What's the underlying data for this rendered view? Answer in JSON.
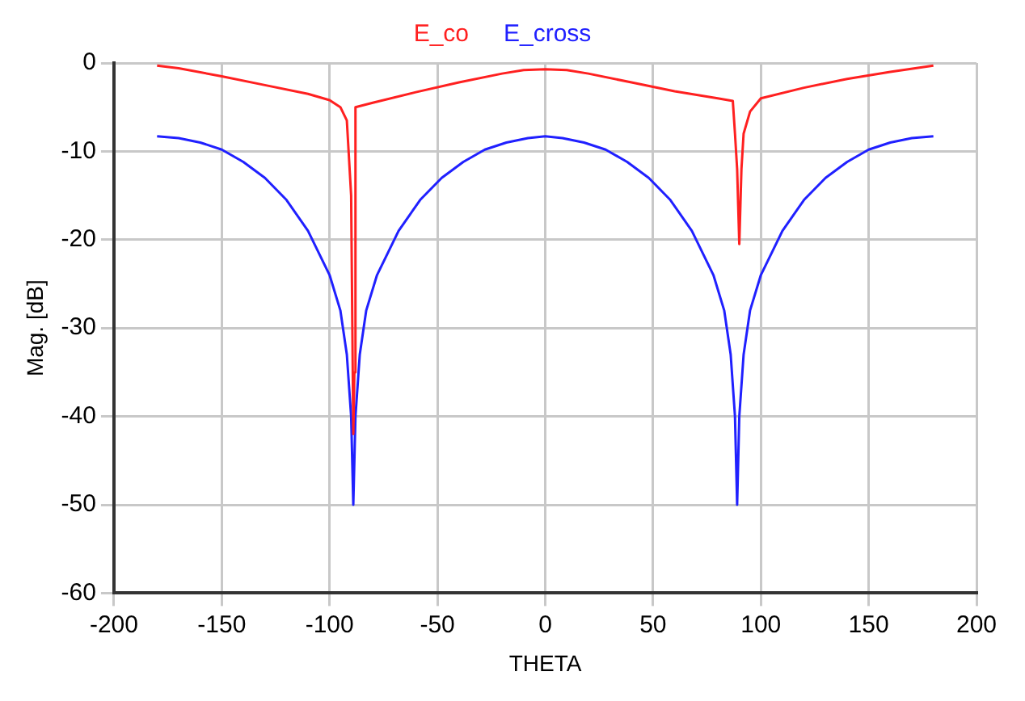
{
  "chart_data": {
    "type": "line",
    "xlabel": "THETA",
    "ylabel": "Mag. [dB]",
    "xlim": [
      -200,
      200
    ],
    "xticks": [
      -200,
      -150,
      -100,
      -50,
      0,
      50,
      100,
      150,
      200
    ],
    "ylim": [
      -60,
      0
    ],
    "yticks": [
      -60,
      -50,
      -40,
      -30,
      -20,
      -10,
      0
    ],
    "grid": true,
    "legend": "top",
    "marker": "none",
    "line_style": "solid",
    "series": [
      {
        "name": "E_co",
        "color": "#ff2020",
        "x": [
          -180,
          -170,
          -150,
          -130,
          -110,
          -100,
          -95,
          -92,
          -90,
          -89,
          -88.5,
          -88,
          -80,
          -60,
          -40,
          -20,
          -10,
          0,
          10,
          20,
          40,
          60,
          80,
          87,
          88,
          89,
          90,
          91,
          92,
          95,
          100,
          120,
          140,
          160,
          180
        ],
        "values": [
          -0.3,
          -0.6,
          -1.5,
          -2.5,
          -3.5,
          -4.2,
          -5,
          -6.5,
          -15,
          -42,
          -35,
          -5,
          -4.5,
          -3.3,
          -2.2,
          -1.2,
          -0.8,
          -0.7,
          -0.8,
          -1.2,
          -2.2,
          -3.2,
          -4,
          -4.3,
          -8,
          -12,
          -20.5,
          -12,
          -8,
          -5.5,
          -4,
          -2.8,
          -1.8,
          -1,
          -0.3
        ]
      },
      {
        "name": "E_cross",
        "color": "#2020ff",
        "x": [
          -180,
          -170,
          -160,
          -150,
          -140,
          -130,
          -120,
          -110,
          -100,
          -95,
          -92,
          -90,
          -89,
          -88,
          -86,
          -83,
          -78,
          -68,
          -58,
          -48,
          -38,
          -28,
          -18,
          -8,
          0,
          8,
          18,
          28,
          38,
          48,
          58,
          68,
          78,
          83,
          86,
          88,
          89,
          90,
          92,
          95,
          100,
          110,
          120,
          130,
          140,
          150,
          160,
          170,
          180
        ],
        "values": [
          -8.3,
          -8.5,
          -9,
          -9.8,
          -11.2,
          -13,
          -15.5,
          -19,
          -24,
          -28,
          -33,
          -40,
          -50,
          -40,
          -33,
          -28,
          -24,
          -19,
          -15.5,
          -13,
          -11.2,
          -9.8,
          -9,
          -8.5,
          -8.3,
          -8.5,
          -9,
          -9.8,
          -11.2,
          -13,
          -15.5,
          -19,
          -24,
          -28,
          -33,
          -40,
          -50,
          -40,
          -33,
          -28,
          -24,
          -19,
          -15.5,
          -13,
          -11.2,
          -9.8,
          -9,
          -8.5,
          -8.3
        ]
      }
    ]
  }
}
